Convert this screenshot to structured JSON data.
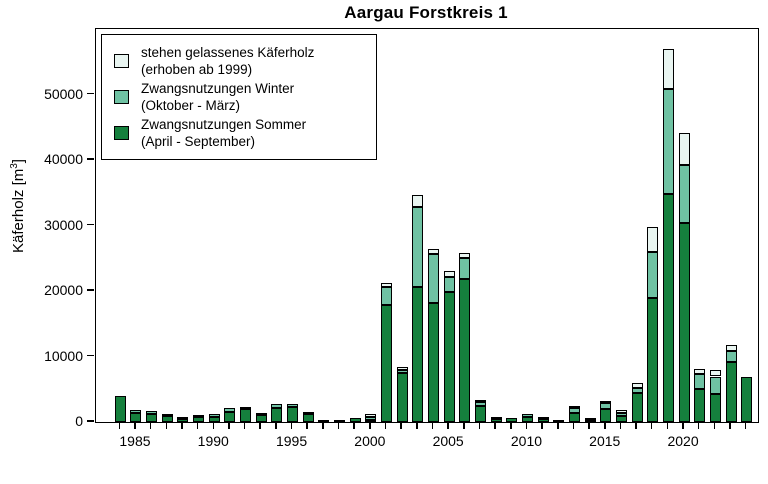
{
  "title": "Aargau Forstkreis 1",
  "ylabel": {
    "pre": "Käferholz [m",
    "sup": "3",
    "post": "]"
  },
  "legend": {
    "items": [
      {
        "line1": "stehen gelassenes Käferholz",
        "line2": "(erhoben ab 1999)",
        "color": "#e9f5f1"
      },
      {
        "line1": "Zwangsnutzungen Winter",
        "line2": "(Oktober - März)",
        "color": "#6fc2a3"
      },
      {
        "line1": "Zwangsnutzungen Sommer",
        "line2": "(April - September)",
        "color": "#15803d"
      }
    ]
  },
  "colors": {
    "outline": "#000000",
    "summer": "#15803d",
    "winter": "#6fc2a3",
    "standing": "#e9f5f1"
  },
  "chart_data": {
    "type": "bar",
    "stacked": true,
    "title": "Aargau Forstkreis 1",
    "xlabel": "",
    "ylabel": "Käferholz [m³]",
    "ylim": [
      0,
      60000
    ],
    "y_ticks": [
      0,
      10000,
      20000,
      30000,
      40000,
      50000
    ],
    "x_tick_years": [
      1985,
      1990,
      1995,
      2000,
      2005,
      2010,
      2015,
      2020
    ],
    "grid": false,
    "legend_position": "top-left",
    "years": [
      1984,
      1985,
      1986,
      1987,
      1988,
      1989,
      1990,
      1991,
      1992,
      1993,
      1994,
      1995,
      1996,
      1997,
      1998,
      1999,
      2000,
      2001,
      2002,
      2003,
      2004,
      2005,
      2006,
      2007,
      2008,
      2009,
      2010,
      2011,
      2012,
      2013,
      2014,
      2015,
      2016,
      2017,
      2018,
      2019,
      2020,
      2021,
      2022,
      2023,
      2024
    ],
    "series": [
      {
        "name": "Zwangsnutzungen Sommer (April - September)",
        "color": "#15803d",
        "values": [
          4000,
          1400,
          1300,
          900,
          500,
          700,
          700,
          1600,
          2000,
          1100,
          2100,
          2250,
          1150,
          300,
          350,
          600,
          350,
          17800,
          7500,
          20600,
          18100,
          19800,
          21800,
          2500,
          400,
          550,
          800,
          400,
          250,
          1450,
          300,
          2000,
          900,
          4400,
          19000,
          34800,
          30400,
          5100,
          4300,
          9100,
          6900
        ]
      },
      {
        "name": "Zwangsnutzungen Winter (Oktober - März)",
        "color": "#6fc2a3",
        "values": [
          0,
          450,
          350,
          350,
          200,
          400,
          500,
          600,
          250,
          100,
          600,
          450,
          250,
          0,
          0,
          0,
          450,
          2750,
          450,
          12200,
          7500,
          2400,
          3300,
          600,
          100,
          0,
          400,
          300,
          0,
          700,
          200,
          950,
          500,
          800,
          6900,
          16100,
          8800,
          2300,
          2650,
          1800,
          0
        ]
      },
      {
        "name": "stehen gelassenes Käferholz (erhoben ab 1999)",
        "color": "#e9f5f1",
        "values": [
          0,
          0,
          0,
          0,
          0,
          0,
          0,
          0,
          0,
          0,
          0,
          0,
          0,
          0,
          0,
          0,
          450,
          650,
          400,
          1900,
          870,
          870,
          660,
          200,
          0,
          0,
          0,
          0,
          0,
          200,
          0,
          250,
          400,
          800,
          3800,
          6000,
          5000,
          760,
          1000,
          900,
          0
        ]
      }
    ]
  }
}
